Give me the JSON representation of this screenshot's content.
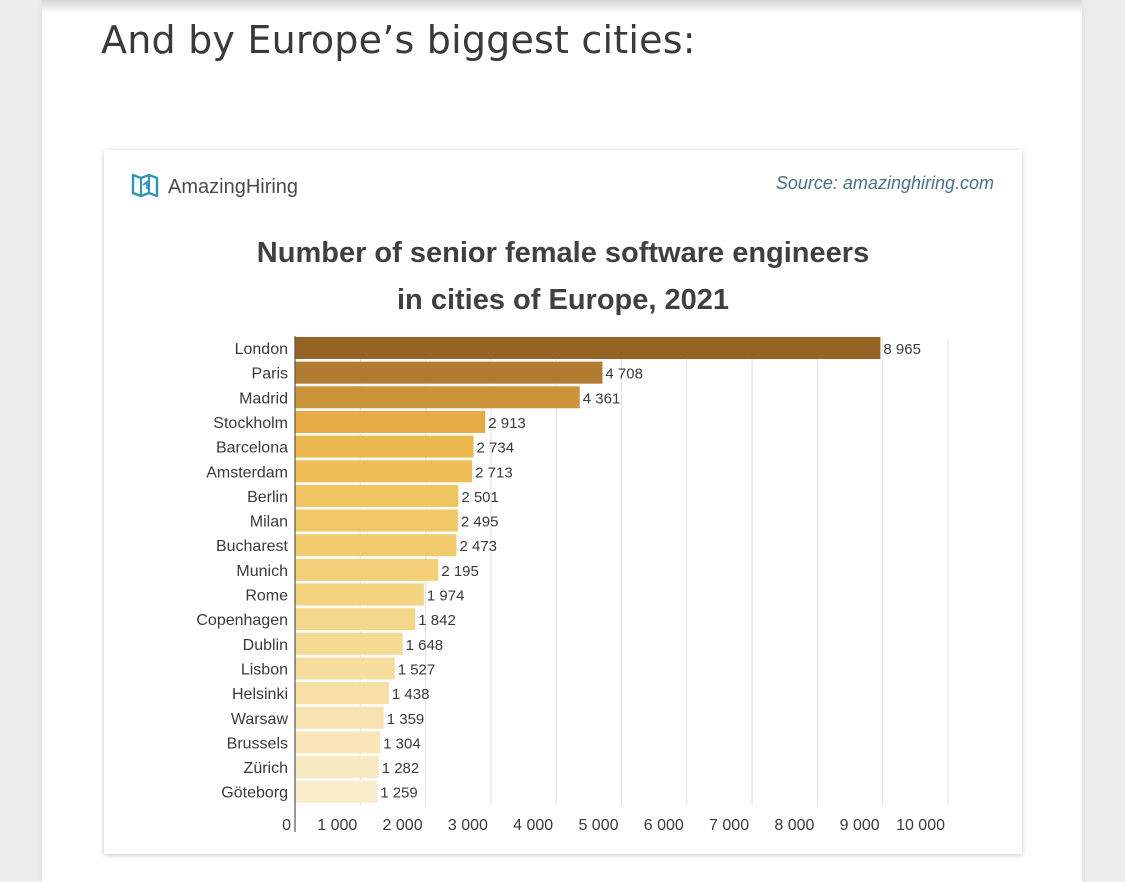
{
  "page": {
    "heading": "And by Europe’s biggest cities:"
  },
  "chart_card": {
    "brand": "AmazingHiring",
    "brand_icon": "amazinghiring-logo-icon",
    "source": "Source: amazinghiring.com"
  },
  "chart_data": {
    "type": "bar",
    "orientation": "horizontal",
    "title_lines": [
      "Number of senior female software engineers",
      "in cities of Europe, 2021"
    ],
    "title": "Number of senior female software engineers in cities of Europe, 2021",
    "categories": [
      "London",
      "Paris",
      "Madrid",
      "Stockholm",
      "Barcelona",
      "Amsterdam",
      "Berlin",
      "Milan",
      "Bucharest",
      "Munich",
      "Rome",
      "Copenhagen",
      "Dublin",
      "Lisbon",
      "Helsinki",
      "Warsaw",
      "Brussels",
      "Zürich",
      "Göteborg"
    ],
    "values": [
      8965,
      4708,
      4361,
      2913,
      2734,
      2713,
      2501,
      2495,
      2473,
      2195,
      1974,
      1842,
      1648,
      1527,
      1438,
      1359,
      1304,
      1282,
      1259
    ],
    "value_labels": [
      "8 965",
      "4 708",
      "4 361",
      "2 913",
      "2 734",
      "2 713",
      "2 501",
      "2 495",
      "2 473",
      "2 195",
      "1 974",
      "1 842",
      "1 648",
      "1 527",
      "1 438",
      "1 359",
      "1 304",
      "1 282",
      "1 259"
    ],
    "xlim": [
      0,
      10000
    ],
    "x_ticks": [
      0,
      1000,
      2000,
      3000,
      4000,
      5000,
      6000,
      7000,
      8000,
      9000,
      10000
    ],
    "x_tick_labels": [
      "0",
      "1 000",
      "2 000",
      "3 000",
      "4 000",
      "5 000",
      "6 000",
      "7 000",
      "8 000",
      "9 000",
      "10 000"
    ],
    "grid": true,
    "legend": "none",
    "colors": [
      "#946222",
      "#b17b30",
      "#cc943a",
      "#e6ab45",
      "#edb94f",
      "#efbe56",
      "#f0c45f",
      "#f1c867",
      "#f2cb6e",
      "#f3cf77",
      "#f4d381",
      "#f4d78a",
      "#f5da94",
      "#f6dd9d",
      "#f6e0a6",
      "#f7e3b0",
      "#f8e6b9",
      "#f9e9c2",
      "#faedcc"
    ]
  }
}
